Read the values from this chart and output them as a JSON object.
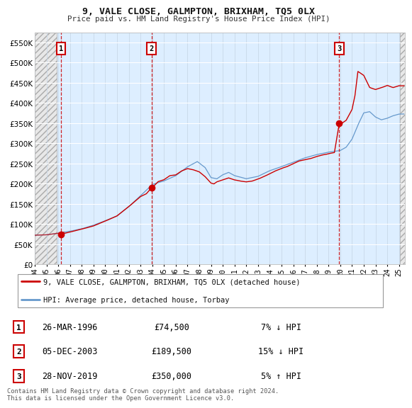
{
  "title": "9, VALE CLOSE, GALMPTON, BRIXHAM, TQ5 0LX",
  "subtitle": "Price paid vs. HM Land Registry's House Price Index (HPI)",
  "background_color": "#ffffff",
  "plot_bg_color": "#ddeeff",
  "grid_color": "#c8d8e8",
  "red_line_color": "#cc0000",
  "blue_line_color": "#6699cc",
  "sale_dates": [
    1996.23,
    2003.93,
    2019.91
  ],
  "sale_prices": [
    74500,
    189500,
    350000
  ],
  "sale_labels": [
    "1",
    "2",
    "3"
  ],
  "legend_red_label": "9, VALE CLOSE, GALMPTON, BRIXHAM, TQ5 0LX (detached house)",
  "legend_blue_label": "HPI: Average price, detached house, Torbay",
  "table_data": [
    [
      "1",
      "26-MAR-1996",
      "£74,500",
      "7% ↓ HPI"
    ],
    [
      "2",
      "05-DEC-2003",
      "£189,500",
      "15% ↓ HPI"
    ],
    [
      "3",
      "28-NOV-2019",
      "£350,000",
      "5% ↑ HPI"
    ]
  ],
  "footer_text": "Contains HM Land Registry data © Crown copyright and database right 2024.\nThis data is licensed under the Open Government Licence v3.0.",
  "yticks": [
    0,
    50000,
    100000,
    150000,
    200000,
    250000,
    300000,
    350000,
    400000,
    450000,
    500000,
    550000
  ],
  "ytick_labels": [
    "£0",
    "£50K",
    "£100K",
    "£150K",
    "£200K",
    "£250K",
    "£300K",
    "£350K",
    "£400K",
    "£450K",
    "£500K",
    "£550K"
  ],
  "ylim": [
    0,
    575000
  ],
  "xstart": 1994.0,
  "xend": 2025.5,
  "xtick_years": [
    1994,
    1995,
    1996,
    1997,
    1998,
    1999,
    2000,
    2001,
    2002,
    2003,
    2004,
    2005,
    2006,
    2007,
    2008,
    2009,
    2010,
    2011,
    2012,
    2013,
    2014,
    2015,
    2016,
    2017,
    2018,
    2019,
    2020,
    2021,
    2022,
    2023,
    2024,
    2025
  ]
}
